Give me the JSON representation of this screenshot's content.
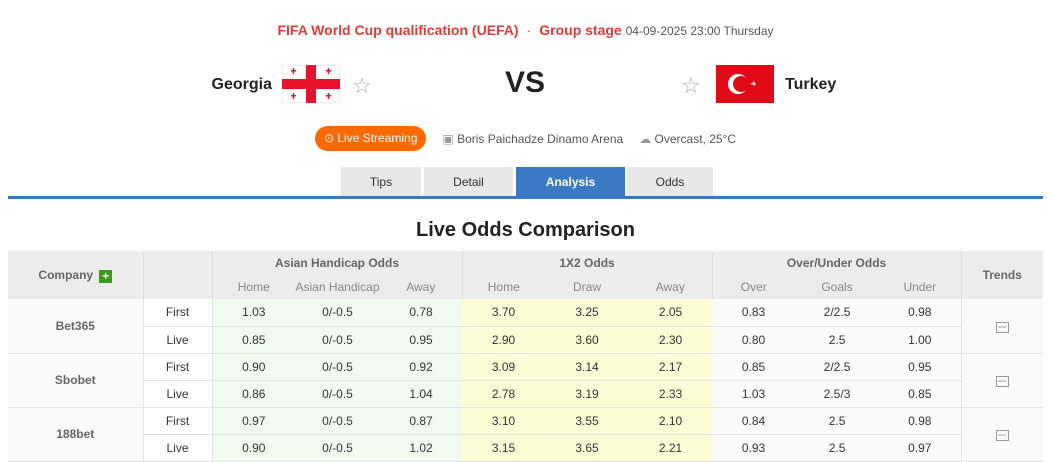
{
  "header": {
    "competition": "FIFA World Cup qualification (UEFA)",
    "separator": "·",
    "stage": "Group stage",
    "datetime": "04-09-2025 23:00 Thursday"
  },
  "match": {
    "home": "Georgia",
    "away": "Turkey",
    "vs": "VS",
    "live_label": "Live Streaming",
    "venue": "Boris Paichadze Dinamo Arena",
    "weather": "Overcast, 25°C"
  },
  "tabs": [
    {
      "label": "Tips"
    },
    {
      "label": "Detail"
    },
    {
      "label": "Analysis",
      "active": true
    },
    {
      "label": "Odds"
    }
  ],
  "section_title": "Live Odds Comparison",
  "table": {
    "headers": {
      "company": "Company",
      "ah": "Asian Handicap Odds",
      "x2": "1X2 Odds",
      "ou": "Over/Under Odds",
      "trends": "Trends"
    },
    "sub": {
      "ah": [
        "Home",
        "Asian Handicap",
        "Away"
      ],
      "x2": [
        "Home",
        "Draw",
        "Away"
      ],
      "ou": [
        "Over",
        "Goals",
        "Under"
      ]
    },
    "companies": [
      {
        "name": "Bet365",
        "rows": [
          {
            "type": "First",
            "ah": [
              "1.03",
              "0/-0.5",
              "0.78"
            ],
            "x2": [
              "3.70",
              "3.25",
              "2.05"
            ],
            "ou": [
              "0.83",
              "2/2.5",
              "0.98"
            ]
          },
          {
            "type": "Live",
            "ah": [
              "0.85",
              "0/-0.5",
              "0.95"
            ],
            "x2": [
              "2.90",
              "3.60",
              "2.30"
            ],
            "ou": [
              "0.80",
              "2.5",
              "1.00"
            ]
          }
        ]
      },
      {
        "name": "Sbobet",
        "rows": [
          {
            "type": "First",
            "ah": [
              "0.90",
              "0/-0.5",
              "0.92"
            ],
            "x2": [
              "3.09",
              "3.14",
              "2.17"
            ],
            "ou": [
              "0.85",
              "2/2.5",
              "0.95"
            ]
          },
          {
            "type": "Live",
            "ah": [
              "0.86",
              "0/-0.5",
              "1.04"
            ],
            "x2": [
              "2.78",
              "3.19",
              "2.33"
            ],
            "ou": [
              "1.03",
              "2.5/3",
              "0.85"
            ]
          }
        ]
      },
      {
        "name": "188bet",
        "rows": [
          {
            "type": "First",
            "ah": [
              "0.97",
              "0/-0.5",
              "0.87"
            ],
            "x2": [
              "3.10",
              "3.55",
              "2.10"
            ],
            "ou": [
              "0.84",
              "2.5",
              "0.98"
            ]
          },
          {
            "type": "Live",
            "ah": [
              "0.90",
              "0/-0.5",
              "1.02"
            ],
            "x2": [
              "3.15",
              "3.65",
              "2.21"
            ],
            "ou": [
              "0.93",
              "2.5",
              "0.97"
            ]
          }
        ]
      }
    ]
  },
  "colors": {
    "accent": "#3c79c4",
    "competition": "#e03a3a",
    "live": "#ff6a00"
  }
}
